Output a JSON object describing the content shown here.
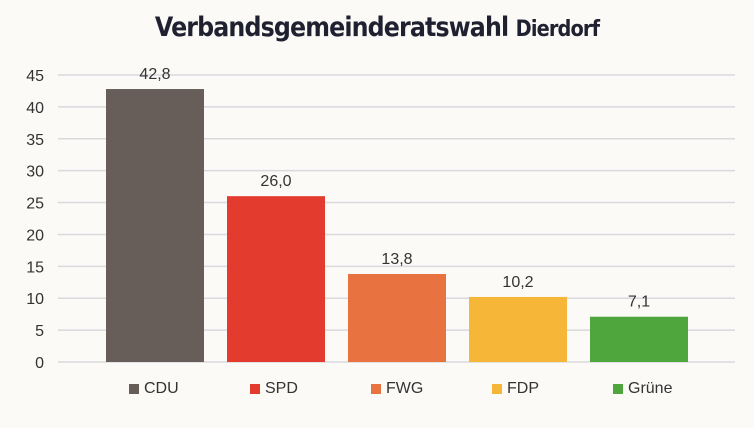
{
  "chart_data": {
    "type": "bar",
    "title": "Verbandsgemeinderatswahl",
    "title_suffix": "Dierdorf",
    "categories": [
      "CDU",
      "SPD",
      "FWG",
      "FDP",
      "Grüne"
    ],
    "values": [
      42.8,
      26.0,
      13.8,
      10.2,
      7.1
    ],
    "data_labels": [
      "42,8",
      "26,0",
      "13,8",
      "10,2",
      "7,1"
    ],
    "colors": [
      "#675e5a",
      "#e33b2e",
      "#e97340",
      "#f6b638",
      "#4ea63d"
    ],
    "ylim": [
      0,
      45
    ],
    "yticks": [
      0,
      5,
      10,
      15,
      20,
      25,
      30,
      35,
      40,
      45
    ],
    "grid": true,
    "legend": "bottom",
    "xlabel": "",
    "ylabel": ""
  }
}
